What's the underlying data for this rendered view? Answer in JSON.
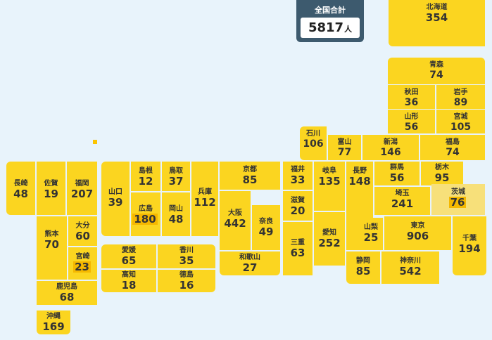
{
  "total": {
    "title": "全国合計",
    "value": "5817",
    "unit": "人"
  },
  "prefectures": {
    "hokkaido": {
      "name": "北海道",
      "count": "354"
    },
    "aomori": {
      "name": "青森",
      "count": "74"
    },
    "akita": {
      "name": "秋田",
      "count": "36"
    },
    "iwate": {
      "name": "岩手",
      "count": "89"
    },
    "yamagata": {
      "name": "山形",
      "count": "56"
    },
    "miyagi": {
      "name": "宮城",
      "count": "105"
    },
    "ishikawa": {
      "name": "石川",
      "count": "106"
    },
    "toyama": {
      "name": "富山",
      "count": "77"
    },
    "niigata": {
      "name": "新潟",
      "count": "146"
    },
    "fukushima": {
      "name": "福島",
      "count": "74"
    },
    "nagasaki": {
      "name": "長崎",
      "count": "48"
    },
    "saga": {
      "name": "佐賀",
      "count": "19"
    },
    "fukuoka": {
      "name": "福岡",
      "count": "207"
    },
    "yamaguchi": {
      "name": "山口",
      "count": "39"
    },
    "shimane": {
      "name": "島根",
      "count": "12"
    },
    "tottori": {
      "name": "鳥取",
      "count": "37"
    },
    "hyogo": {
      "name": "兵庫",
      "count": "112"
    },
    "kyoto": {
      "name": "京都",
      "count": "85"
    },
    "fukui": {
      "name": "福井",
      "count": "33"
    },
    "gifu": {
      "name": "岐阜",
      "count": "135"
    },
    "nagano": {
      "name": "長野",
      "count": "148"
    },
    "gunma": {
      "name": "群馬",
      "count": "56"
    },
    "tochigi": {
      "name": "栃木",
      "count": "95"
    },
    "ibaraki": {
      "name": "茨城",
      "count": "76"
    },
    "hiroshima": {
      "name": "広島",
      "count": "180"
    },
    "okayama": {
      "name": "岡山",
      "count": "48"
    },
    "osaka": {
      "name": "大阪",
      "count": "442"
    },
    "shiga": {
      "name": "滋賀",
      "count": "20"
    },
    "saitama": {
      "name": "埼玉",
      "count": "241"
    },
    "kumamoto": {
      "name": "熊本",
      "count": "70"
    },
    "oita": {
      "name": "大分",
      "count": "60"
    },
    "nara": {
      "name": "奈良",
      "count": "49"
    },
    "mie": {
      "name": "三重",
      "count": "63"
    },
    "aichi": {
      "name": "愛知",
      "count": "252"
    },
    "yamanashi": {
      "name": "山梨",
      "count": "25"
    },
    "tokyo": {
      "name": "東京",
      "count": "906"
    },
    "chiba": {
      "name": "千葉",
      "count": "194"
    },
    "miyazaki": {
      "name": "宮崎",
      "count": "23"
    },
    "ehime": {
      "name": "愛媛",
      "count": "65"
    },
    "kagawa": {
      "name": "香川",
      "count": "35"
    },
    "wakayama": {
      "name": "和歌山",
      "count": "27"
    },
    "shizuoka": {
      "name": "静岡",
      "count": "85"
    },
    "kanagawa": {
      "name": "神奈川",
      "count": "542"
    },
    "kochi": {
      "name": "高知",
      "count": "18"
    },
    "tokushima": {
      "name": "徳島",
      "count": "16"
    },
    "kagoshima": {
      "name": "鹿児島",
      "count": "68"
    },
    "okinawa": {
      "name": "沖縄",
      "count": "169"
    }
  },
  "colors": {
    "tile": "#fbd520",
    "highlight_tile": "#f7e07a",
    "highlight_count": "#f5b800",
    "header": "#3d5a6e",
    "background": "#e8f3fb"
  }
}
